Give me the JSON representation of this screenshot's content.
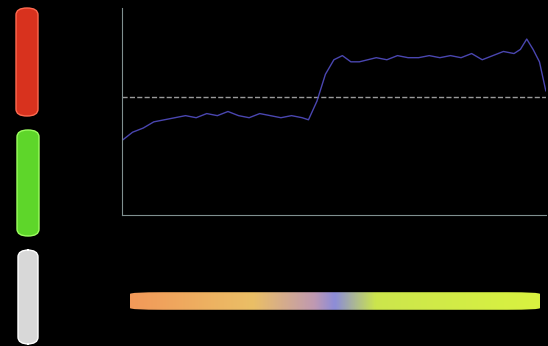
{
  "chart_data": {
    "type": "line",
    "x": [
      0,
      2.5,
      5,
      7.5,
      10,
      12.5,
      15,
      17.5,
      20,
      22.5,
      25,
      27.5,
      30,
      32.5,
      35,
      37.5,
      40,
      42.5,
      44,
      46,
      48,
      50,
      52,
      54,
      56,
      58,
      60,
      62.5,
      65,
      67.5,
      70,
      72.5,
      75,
      77.5,
      80,
      82.5,
      85,
      87.5,
      90,
      92.5,
      94,
      95.5,
      97,
      98.5,
      100
    ],
    "values": [
      0.36,
      0.4,
      0.42,
      0.45,
      0.46,
      0.47,
      0.48,
      0.47,
      0.49,
      0.48,
      0.5,
      0.48,
      0.47,
      0.49,
      0.48,
      0.47,
      0.48,
      0.47,
      0.46,
      0.55,
      0.68,
      0.75,
      0.77,
      0.74,
      0.74,
      0.75,
      0.76,
      0.75,
      0.77,
      0.76,
      0.76,
      0.77,
      0.76,
      0.77,
      0.76,
      0.78,
      0.75,
      0.77,
      0.79,
      0.78,
      0.8,
      0.85,
      0.8,
      0.74,
      0.6
    ],
    "color": "#4a46b0",
    "threshold": 0.57,
    "line_style": "dashed",
    "xlim": [
      0,
      100
    ],
    "ylim": [
      0,
      1
    ],
    "xticks": [],
    "yticks": [],
    "tick_labels": false,
    "grid": false
  }
}
